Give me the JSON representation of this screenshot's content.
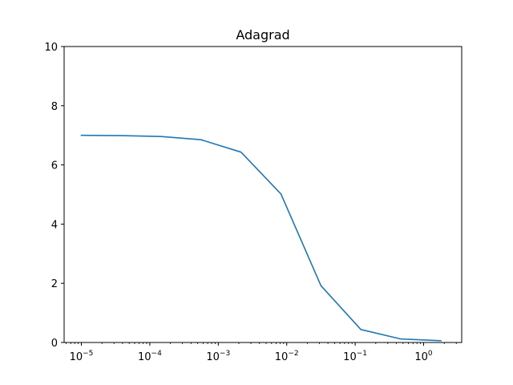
{
  "chart_data": {
    "type": "line",
    "title": "Adagrad",
    "xlabel": "",
    "ylabel": "",
    "xscale": "log",
    "xlim": [
      5.6e-06,
      3.6
    ],
    "ylim": [
      0,
      10
    ],
    "grid": false,
    "x_ticks": [
      {
        "value": 1e-05,
        "base": "10",
        "exp": "−5"
      },
      {
        "value": 0.0001,
        "base": "10",
        "exp": "−4"
      },
      {
        "value": 0.001,
        "base": "10",
        "exp": "−3"
      },
      {
        "value": 0.01,
        "base": "10",
        "exp": "−2"
      },
      {
        "value": 0.1,
        "base": "10",
        "exp": "−1"
      },
      {
        "value": 1,
        "base": "10",
        "exp": "0"
      }
    ],
    "y_ticks": [
      0,
      2,
      4,
      6,
      8,
      10
    ],
    "series": [
      {
        "color": "#1f77b4",
        "x": [
          1e-05,
          3.83e-05,
          0.000146,
          0.00056,
          0.00215,
          0.00823,
          0.0316,
          0.121,
          0.464,
          1.78
        ],
        "y": [
          7.0,
          6.99,
          6.96,
          6.85,
          6.43,
          5.02,
          1.92,
          0.44,
          0.12,
          0.06
        ]
      }
    ]
  }
}
